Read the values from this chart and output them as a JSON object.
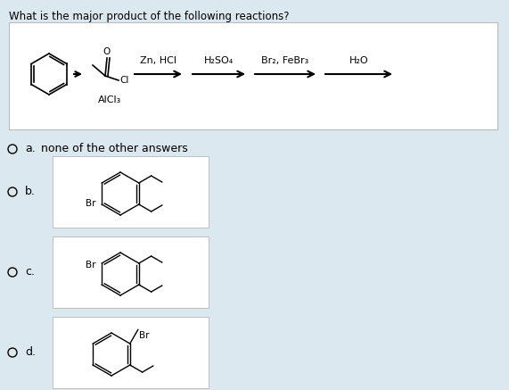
{
  "bg_color": "#dce8f0",
  "title": "What is the major product of the following reactions?",
  "reaction_box_color": "#ffffff",
  "answer_labels": [
    "a.",
    "b.",
    "c.",
    "d."
  ],
  "answer_texts": [
    "none of the other answers",
    "",
    "",
    ""
  ],
  "reagents": [
    "Zn, HCl",
    "H₂SO₄",
    "Br₂, FeBr₃",
    "H₂O"
  ],
  "first_reagent_below": "AlCl₃",
  "line_color": "#888888"
}
